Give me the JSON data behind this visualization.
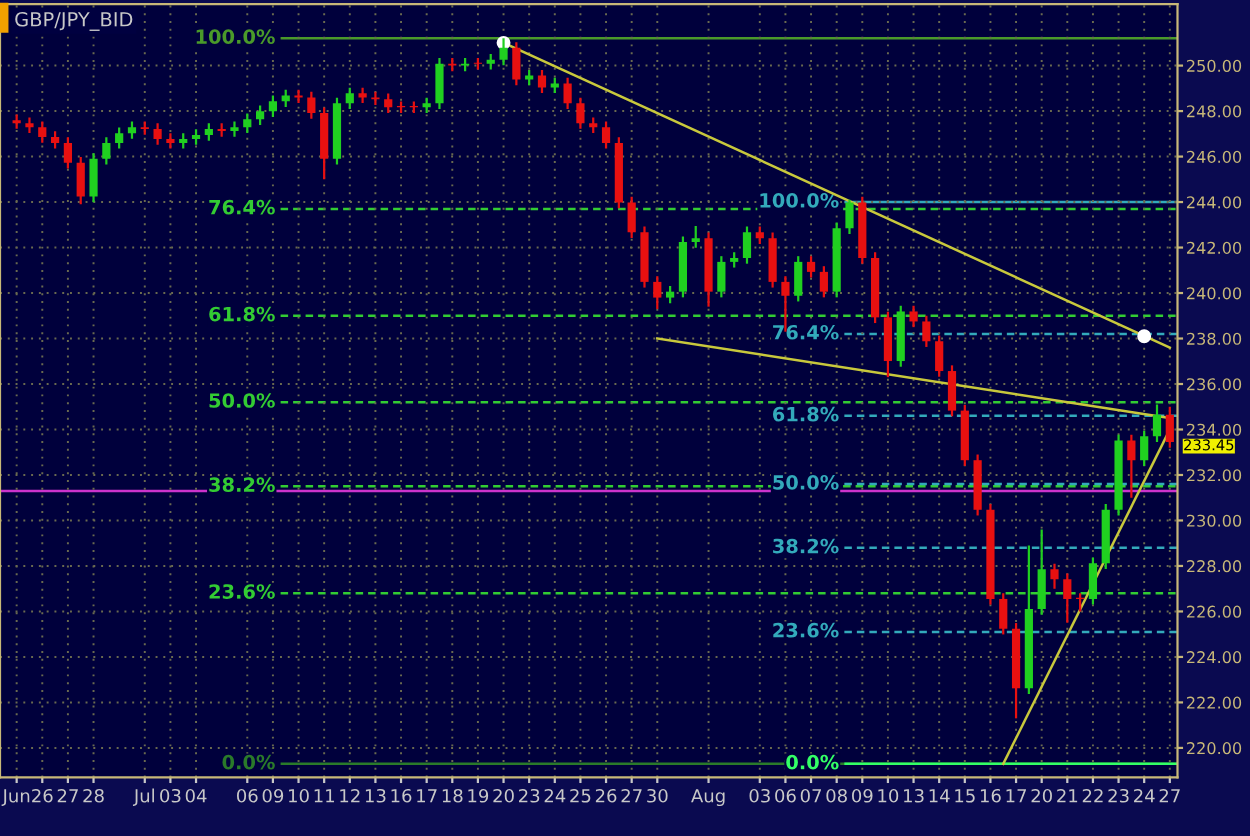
{
  "chart_data": {
    "type": "candlestick",
    "title": "GBP/JPY_BID",
    "categories": [
      "Jun",
      null,
      "26",
      null,
      "27",
      null,
      "28",
      null,
      null,
      null,
      "Jul",
      null,
      "03",
      null,
      "04",
      null,
      null,
      null,
      "06",
      null,
      "09",
      null,
      "10",
      null,
      "11",
      null,
      "12",
      null,
      "13",
      null,
      "16",
      null,
      "17",
      null,
      "18",
      null,
      "19",
      null,
      "20",
      null,
      "23",
      null,
      "24",
      null,
      "25",
      null,
      "26",
      null,
      "27",
      null,
      "30",
      null,
      null,
      null,
      "Aug",
      null,
      null,
      null,
      "03",
      null,
      "06",
      null,
      "07",
      null,
      "08",
      null,
      "09",
      null,
      "10",
      null,
      "13",
      null,
      "14",
      null,
      "15",
      null,
      "16",
      null,
      "17",
      null,
      "20",
      null,
      "21",
      null,
      "22",
      null,
      "23",
      null,
      "24",
      null,
      "27"
    ],
    "ohlc": [
      [
        247.6,
        247.85,
        247.22,
        247.47
      ],
      [
        247.47,
        247.72,
        247.04,
        247.29
      ],
      [
        247.29,
        247.54,
        246.61,
        246.86
      ],
      [
        246.86,
        247.11,
        246.35,
        246.6
      ],
      [
        246.6,
        246.85,
        245.48,
        245.73
      ],
      [
        245.73,
        245.98,
        243.9,
        244.24
      ],
      [
        244.24,
        246.15,
        243.99,
        245.9
      ],
      [
        245.9,
        246.85,
        245.65,
        246.6
      ],
      [
        246.6,
        247.28,
        246.35,
        247.03
      ],
      [
        247.03,
        247.54,
        246.78,
        247.29
      ],
      [
        247.29,
        247.54,
        246.96,
        247.21
      ],
      [
        247.21,
        247.46,
        246.52,
        246.77
      ],
      [
        246.77,
        247.02,
        246.35,
        246.6
      ],
      [
        246.6,
        247.02,
        246.35,
        246.77
      ],
      [
        246.77,
        247.2,
        246.52,
        246.95
      ],
      [
        246.95,
        247.46,
        246.7,
        247.21
      ],
      [
        247.21,
        247.46,
        246.87,
        247.12
      ],
      [
        247.12,
        247.54,
        246.87,
        247.29
      ],
      [
        247.29,
        247.89,
        247.04,
        247.64
      ],
      [
        247.64,
        248.24,
        247.39,
        247.99
      ],
      [
        247.99,
        248.68,
        247.74,
        248.43
      ],
      [
        248.43,
        248.94,
        248.18,
        248.69
      ],
      [
        248.69,
        248.94,
        248.35,
        248.6
      ],
      [
        248.6,
        248.85,
        247.66,
        247.91
      ],
      [
        247.91,
        248.16,
        245.0,
        245.9
      ],
      [
        245.9,
        248.59,
        245.65,
        248.34
      ],
      [
        248.34,
        249.03,
        248.09,
        248.78
      ],
      [
        248.78,
        249.03,
        248.35,
        248.6
      ],
      [
        248.6,
        248.85,
        248.27,
        248.52
      ],
      [
        248.52,
        248.77,
        247.92,
        248.17
      ],
      [
        248.17,
        248.42,
        247.92,
        248.17
      ],
      [
        248.17,
        248.42,
        247.92,
        248.17
      ],
      [
        248.17,
        248.59,
        247.92,
        248.34
      ],
      [
        248.34,
        250.33,
        248.09,
        250.08
      ],
      [
        250.08,
        250.33,
        249.75,
        250.0
      ],
      [
        250.0,
        250.33,
        249.75,
        250.08
      ],
      [
        250.08,
        250.33,
        249.83,
        250.08
      ],
      [
        250.08,
        250.51,
        249.83,
        250.26
      ],
      [
        250.26,
        251.2,
        250.01,
        250.78
      ],
      [
        250.78,
        251.03,
        249.14,
        249.39
      ],
      [
        249.39,
        249.81,
        249.14,
        249.56
      ],
      [
        249.56,
        249.81,
        248.79,
        249.04
      ],
      [
        249.04,
        249.46,
        248.79,
        249.21
      ],
      [
        249.21,
        249.46,
        248.09,
        248.34
      ],
      [
        248.34,
        248.59,
        247.22,
        247.47
      ],
      [
        247.47,
        247.72,
        247.04,
        247.29
      ],
      [
        247.29,
        247.54,
        246.35,
        246.6
      ],
      [
        246.6,
        246.85,
        243.73,
        243.98
      ],
      [
        243.98,
        244.23,
        242.42,
        242.67
      ],
      [
        242.67,
        242.92,
        240.24,
        240.49
      ],
      [
        240.49,
        240.74,
        239.3,
        239.8
      ],
      [
        239.8,
        240.31,
        239.55,
        240.06
      ],
      [
        240.06,
        242.49,
        239.81,
        242.24
      ],
      [
        242.24,
        242.95,
        241.99,
        242.41
      ],
      [
        242.41,
        242.66,
        239.4,
        240.06
      ],
      [
        240.06,
        241.62,
        239.81,
        241.37
      ],
      [
        241.37,
        241.79,
        241.12,
        241.54
      ],
      [
        241.54,
        242.92,
        241.29,
        242.67
      ],
      [
        242.67,
        242.92,
        242.16,
        242.41
      ],
      [
        242.41,
        242.66,
        240.24,
        240.49
      ],
      [
        240.49,
        240.74,
        238.3,
        239.88
      ],
      [
        239.88,
        241.62,
        239.63,
        241.37
      ],
      [
        241.37,
        241.62,
        240.68,
        240.93
      ],
      [
        240.93,
        241.18,
        239.81,
        240.06
      ],
      [
        240.06,
        243.1,
        239.81,
        242.85
      ],
      [
        242.85,
        244.1,
        242.6,
        243.98
      ],
      [
        243.98,
        244.23,
        241.29,
        241.54
      ],
      [
        241.54,
        241.79,
        238.68,
        238.93
      ],
      [
        238.93,
        239.18,
        236.3,
        237.01
      ],
      [
        237.01,
        239.44,
        236.76,
        239.19
      ],
      [
        239.19,
        239.44,
        238.5,
        238.75
      ],
      [
        238.75,
        239.0,
        237.63,
        237.88
      ],
      [
        237.88,
        238.13,
        236.32,
        236.57
      ],
      [
        236.57,
        236.82,
        234.58,
        234.83
      ],
      [
        234.83,
        235.08,
        232.4,
        232.65
      ],
      [
        232.65,
        232.9,
        230.22,
        230.47
      ],
      [
        230.47,
        230.72,
        226.3,
        226.55
      ],
      [
        226.55,
        226.8,
        224.99,
        225.24
      ],
      [
        225.24,
        225.49,
        221.3,
        222.62
      ],
      [
        222.62,
        228.9,
        222.37,
        226.11
      ],
      [
        226.11,
        229.6,
        225.86,
        227.85
      ],
      [
        227.85,
        228.1,
        227.0,
        227.42
      ],
      [
        227.42,
        227.67,
        225.5,
        226.55
      ],
      [
        226.55,
        226.8,
        226.0,
        226.55
      ],
      [
        226.55,
        228.37,
        226.3,
        228.12
      ],
      [
        228.12,
        230.72,
        227.87,
        230.47
      ],
      [
        230.47,
        233.77,
        230.22,
        233.52
      ],
      [
        233.52,
        233.77,
        231.0,
        232.65
      ],
      [
        232.65,
        233.95,
        232.4,
        233.7
      ],
      [
        233.7,
        235.1,
        233.45,
        234.65
      ],
      [
        234.65,
        235.0,
        233.2,
        233.45
      ]
    ],
    "colors": [
      "#e81010",
      "#e81010",
      "#e81010",
      "#e81010",
      "#e81010",
      "#e81010",
      "#20d020",
      "#20d020",
      "#20d020",
      "#20d020",
      "#e81010",
      "#e81010",
      "#e81010",
      "#20d020",
      "#20d020",
      "#20d020",
      "#e81010",
      "#20d020",
      "#20d020",
      "#20d020",
      "#20d020",
      "#20d020",
      "#e81010",
      "#e81010",
      "#e81010",
      "#20d020",
      "#20d020",
      "#e81010",
      "#e81010",
      "#e81010",
      "#e81010",
      "#e81010",
      "#20d020",
      "#20d020",
      "#e81010",
      "#20d020",
      "#e81010",
      "#20d020",
      "#20d020",
      "#e81010",
      "#20d020",
      "#e81010",
      "#20d020",
      "#e81010",
      "#e81010",
      "#e81010",
      "#e81010",
      "#e81010",
      "#e81010",
      "#e81010",
      "#e81010",
      "#20d020",
      "#20d020",
      "#20d020",
      "#e81010",
      "#20d020",
      "#20d020",
      "#20d020",
      "#e81010",
      "#e81010",
      "#e81010",
      "#20d020",
      "#e81010",
      "#e81010",
      "#20d020",
      "#20d020",
      "#e81010",
      "#e81010",
      "#e81010",
      "#20d020",
      "#e81010",
      "#e81010",
      "#e81010",
      "#e81010",
      "#e81010",
      "#e81010",
      "#e81010",
      "#e81010",
      "#e81010",
      "#20d020",
      "#20d020",
      "#e81010",
      "#e81010",
      "#e81010",
      "#20d020",
      "#20d020",
      "#20d020",
      "#e81010",
      "#20d020",
      "#20d020",
      "#e81010"
    ],
    "ylim": [
      218.7,
      252.7
    ],
    "yticks": [
      {
        "value": 220,
        "label": "220.00"
      },
      {
        "value": 222,
        "label": "222.00"
      },
      {
        "value": 224,
        "label": "224.00"
      },
      {
        "value": 226,
        "label": "226.00"
      },
      {
        "value": 228,
        "label": "228.00"
      },
      {
        "value": 230,
        "label": "230.00"
      },
      {
        "value": 232,
        "label": "232.00"
      },
      {
        "value": 234,
        "label": "234.00"
      },
      {
        "value": 236,
        "label": "236.00"
      },
      {
        "value": 238,
        "label": "238.00"
      },
      {
        "value": 240,
        "label": "240.00"
      },
      {
        "value": 242,
        "label": "242.00"
      },
      {
        "value": 244,
        "label": "244.00"
      },
      {
        "value": 246,
        "label": "246.00"
      },
      {
        "value": 248,
        "label": "248.00"
      },
      {
        "value": 250,
        "label": "250.00"
      }
    ],
    "grid": true,
    "ref_lines": [
      {
        "axis": "y",
        "value": 251.2,
        "color": "#4a9a2a",
        "line_style": "solid"
      },
      {
        "axis": "y",
        "value": 243.7,
        "color": "#33cc33",
        "line_style": "dashed"
      },
      {
        "axis": "y",
        "value": 239.0,
        "color": "#33cc33",
        "line_style": "dashed"
      },
      {
        "axis": "y",
        "value": 235.2,
        "color": "#33cc33",
        "line_style": "dashed"
      },
      {
        "axis": "y",
        "value": 231.5,
        "color": "#33cc33",
        "line_style": "dashed"
      },
      {
        "axis": "y",
        "value": 226.8,
        "color": "#33cc33",
        "line_style": "dashed"
      },
      {
        "axis": "y",
        "value": 219.3,
        "color": "#2a7a2a",
        "line_style": "solid"
      },
      {
        "axis": "y",
        "value": 244.0,
        "color": "#33aabb",
        "line_style": "solid"
      },
      {
        "axis": "y",
        "value": 238.2,
        "color": "#33aabb",
        "line_style": "dashed"
      },
      {
        "axis": "y",
        "value": 234.6,
        "color": "#33aabb",
        "line_style": "dashed"
      },
      {
        "axis": "y",
        "value": 231.6,
        "color": "#33aabb",
        "line_style": "dashed"
      },
      {
        "axis": "y",
        "value": 228.8,
        "color": "#33aabb",
        "line_style": "dashed"
      },
      {
        "axis": "y",
        "value": 225.1,
        "color": "#33aabb",
        "line_style": "dashed"
      },
      {
        "axis": "y",
        "value": 219.3,
        "color": "#33ff66",
        "line_style": "solid"
      },
      {
        "axis": "y",
        "value": 231.3,
        "color": "#cc33cc",
        "line_style": "solid"
      }
    ],
    "series": [
      {
        "type": "line",
        "color": "#c8c83c",
        "values": [
          null,
          null,
          null,
          null,
          null,
          null,
          null,
          null,
          null,
          null,
          null,
          null,
          null,
          null,
          null,
          null,
          null,
          null,
          null,
          null,
          null,
          null,
          null,
          null,
          null,
          null,
          null,
          null,
          null,
          null,
          null,
          null,
          null,
          null,
          null,
          null,
          null,
          null,
          251.0,
          null,
          null,
          null,
          null,
          null,
          null,
          null,
          null,
          null,
          null,
          null,
          null,
          null,
          null,
          null,
          null,
          null,
          null,
          null,
          null,
          null,
          null,
          null,
          null,
          null,
          null,
          null,
          null,
          null,
          null,
          null,
          null,
          null,
          null,
          null,
          null,
          null,
          null,
          null,
          null,
          null,
          null,
          null,
          null,
          null,
          null,
          null,
          null,
          null,
          null,
          null,
          237.6
        ]
      },
      {
        "type": "line",
        "color": "#c8c83c",
        "values": [
          null,
          null,
          null,
          null,
          null,
          null,
          null,
          null,
          null,
          null,
          null,
          null,
          null,
          null,
          null,
          null,
          null,
          null,
          null,
          null,
          null,
          null,
          null,
          null,
          null,
          null,
          null,
          null,
          null,
          null,
          null,
          null,
          null,
          null,
          null,
          null,
          null,
          null,
          null,
          null,
          null,
          null,
          null,
          null,
          null,
          null,
          null,
          null,
          null,
          null,
          238.0,
          null,
          null,
          null,
          null,
          null,
          null,
          null,
          null,
          null,
          null,
          null,
          null,
          null,
          null,
          null,
          null,
          null,
          null,
          null,
          null,
          null,
          null,
          null,
          null,
          null,
          null,
          null,
          null,
          null,
          null,
          null,
          null,
          null,
          null,
          null,
          null,
          null,
          null,
          null,
          234.5
        ]
      },
      {
        "type": "line",
        "color": "#c8c83c",
        "values": [
          null,
          null,
          null,
          null,
          null,
          null,
          null,
          null,
          null,
          null,
          null,
          null,
          null,
          null,
          null,
          null,
          null,
          null,
          null,
          null,
          null,
          null,
          null,
          null,
          null,
          null,
          null,
          null,
          null,
          null,
          null,
          null,
          null,
          null,
          null,
          null,
          null,
          null,
          null,
          null,
          null,
          null,
          null,
          null,
          null,
          null,
          null,
          null,
          null,
          null,
          null,
          null,
          null,
          null,
          null,
          null,
          null,
          null,
          null,
          null,
          null,
          null,
          null,
          null,
          null,
          null,
          null,
          null,
          null,
          null,
          null,
          null,
          null,
          null,
          null,
          null,
          null,
          219.3,
          null,
          null,
          null,
          null,
          null,
          null,
          null,
          null,
          null,
          null,
          null,
          null,
          234.0
        ]
      },
      {
        "type": "scatter",
        "color": "#ffffff",
        "marker": "circle",
        "values": [
          null,
          null,
          null,
          null,
          null,
          null,
          null,
          null,
          null,
          null,
          null,
          null,
          null,
          null,
          null,
          null,
          null,
          null,
          null,
          null,
          null,
          null,
          null,
          null,
          null,
          null,
          null,
          null,
          null,
          null,
          null,
          null,
          null,
          null,
          null,
          null,
          null,
          null,
          251.0,
          null,
          null,
          null,
          null,
          null,
          null,
          null,
          null,
          null,
          null,
          null,
          null,
          null,
          null,
          null,
          null,
          null,
          null,
          null,
          null,
          null,
          null,
          null,
          null,
          null,
          null,
          null,
          null,
          null,
          null,
          null,
          null,
          null,
          null,
          null,
          null,
          null,
          null,
          null,
          null,
          null,
          null,
          null,
          null,
          null,
          null,
          null,
          null,
          null,
          238.1,
          null,
          null
        ]
      }
    ],
    "annotations": [
      "100.0%",
      "76.4%",
      "61.8%",
      "50.0%",
      "38.2%",
      "23.6%",
      "0.0%",
      "100.0%",
      "76.4%",
      "61.8%",
      "50.0%",
      "38.2%",
      "23.6%",
      "0.0%",
      "233.45"
    ]
  }
}
